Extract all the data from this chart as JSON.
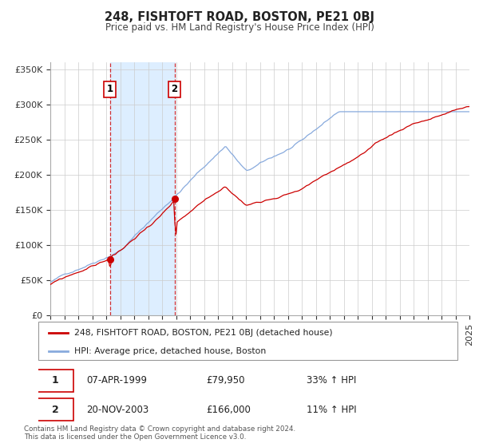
{
  "title": "248, FISHTOFT ROAD, BOSTON, PE21 0BJ",
  "subtitle": "Price paid vs. HM Land Registry's House Price Index (HPI)",
  "legend_label_red": "248, FISHTOFT ROAD, BOSTON, PE21 0BJ (detached house)",
  "legend_label_blue": "HPI: Average price, detached house, Boston",
  "sale1_date": "07-APR-1999",
  "sale1_price": "£79,950",
  "sale1_hpi": "33% ↑ HPI",
  "sale1_year": 1999.27,
  "sale1_value": 79950,
  "sale2_date": "20-NOV-2003",
  "sale2_price": "£166,000",
  "sale2_hpi": "11% ↑ HPI",
  "sale2_year": 2003.89,
  "sale2_value": 166000,
  "ylim": [
    0,
    360000
  ],
  "yticks": [
    0,
    50000,
    100000,
    150000,
    200000,
    250000,
    300000,
    350000
  ],
  "ytick_labels": [
    "£0",
    "£50K",
    "£100K",
    "£150K",
    "£200K",
    "£250K",
    "£300K",
    "£350K"
  ],
  "color_red": "#cc0000",
  "color_blue": "#88aadd",
  "color_shade": "#ddeeff",
  "footnote1": "Contains HM Land Registry data © Crown copyright and database right 2024.",
  "footnote2": "This data is licensed under the Open Government Licence v3.0.",
  "background_color": "#ffffff",
  "grid_color": "#cccccc"
}
